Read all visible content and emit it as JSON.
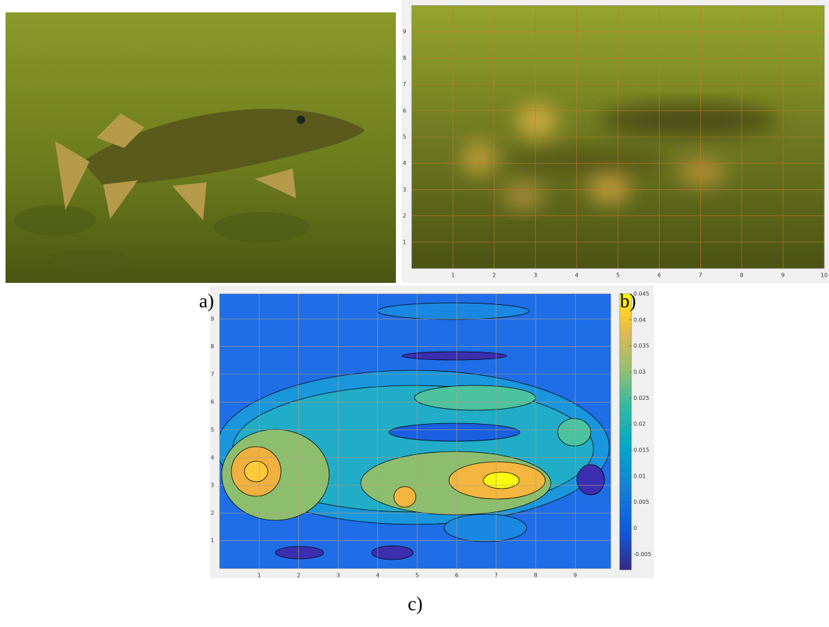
{
  "figure": {
    "panels": [
      {
        "label": "a)"
      },
      {
        "label": "b)",
        "xlim": [
          0,
          10
        ],
        "ylim": [
          0,
          10
        ],
        "xticks": [
          1,
          2,
          3,
          4,
          5,
          6,
          7,
          8,
          9,
          10
        ],
        "yticks": [
          1,
          2,
          3,
          4,
          5,
          6,
          7,
          8,
          9
        ]
      },
      {
        "label": "c)",
        "xlim": [
          0,
          9.9
        ],
        "ylim": [
          0,
          9.9
        ],
        "xticks": [
          1,
          2,
          3,
          4,
          5,
          6,
          7,
          8,
          9
        ],
        "yticks": [
          1,
          2,
          3,
          4,
          5,
          6,
          7,
          8,
          9
        ],
        "clim": [
          -0.008,
          0.045
        ],
        "cticks": [
          -0.005,
          0,
          0.005,
          0.01,
          0.015,
          0.02,
          0.025,
          0.03,
          0.035,
          0.04,
          0.045
        ]
      }
    ]
  }
}
